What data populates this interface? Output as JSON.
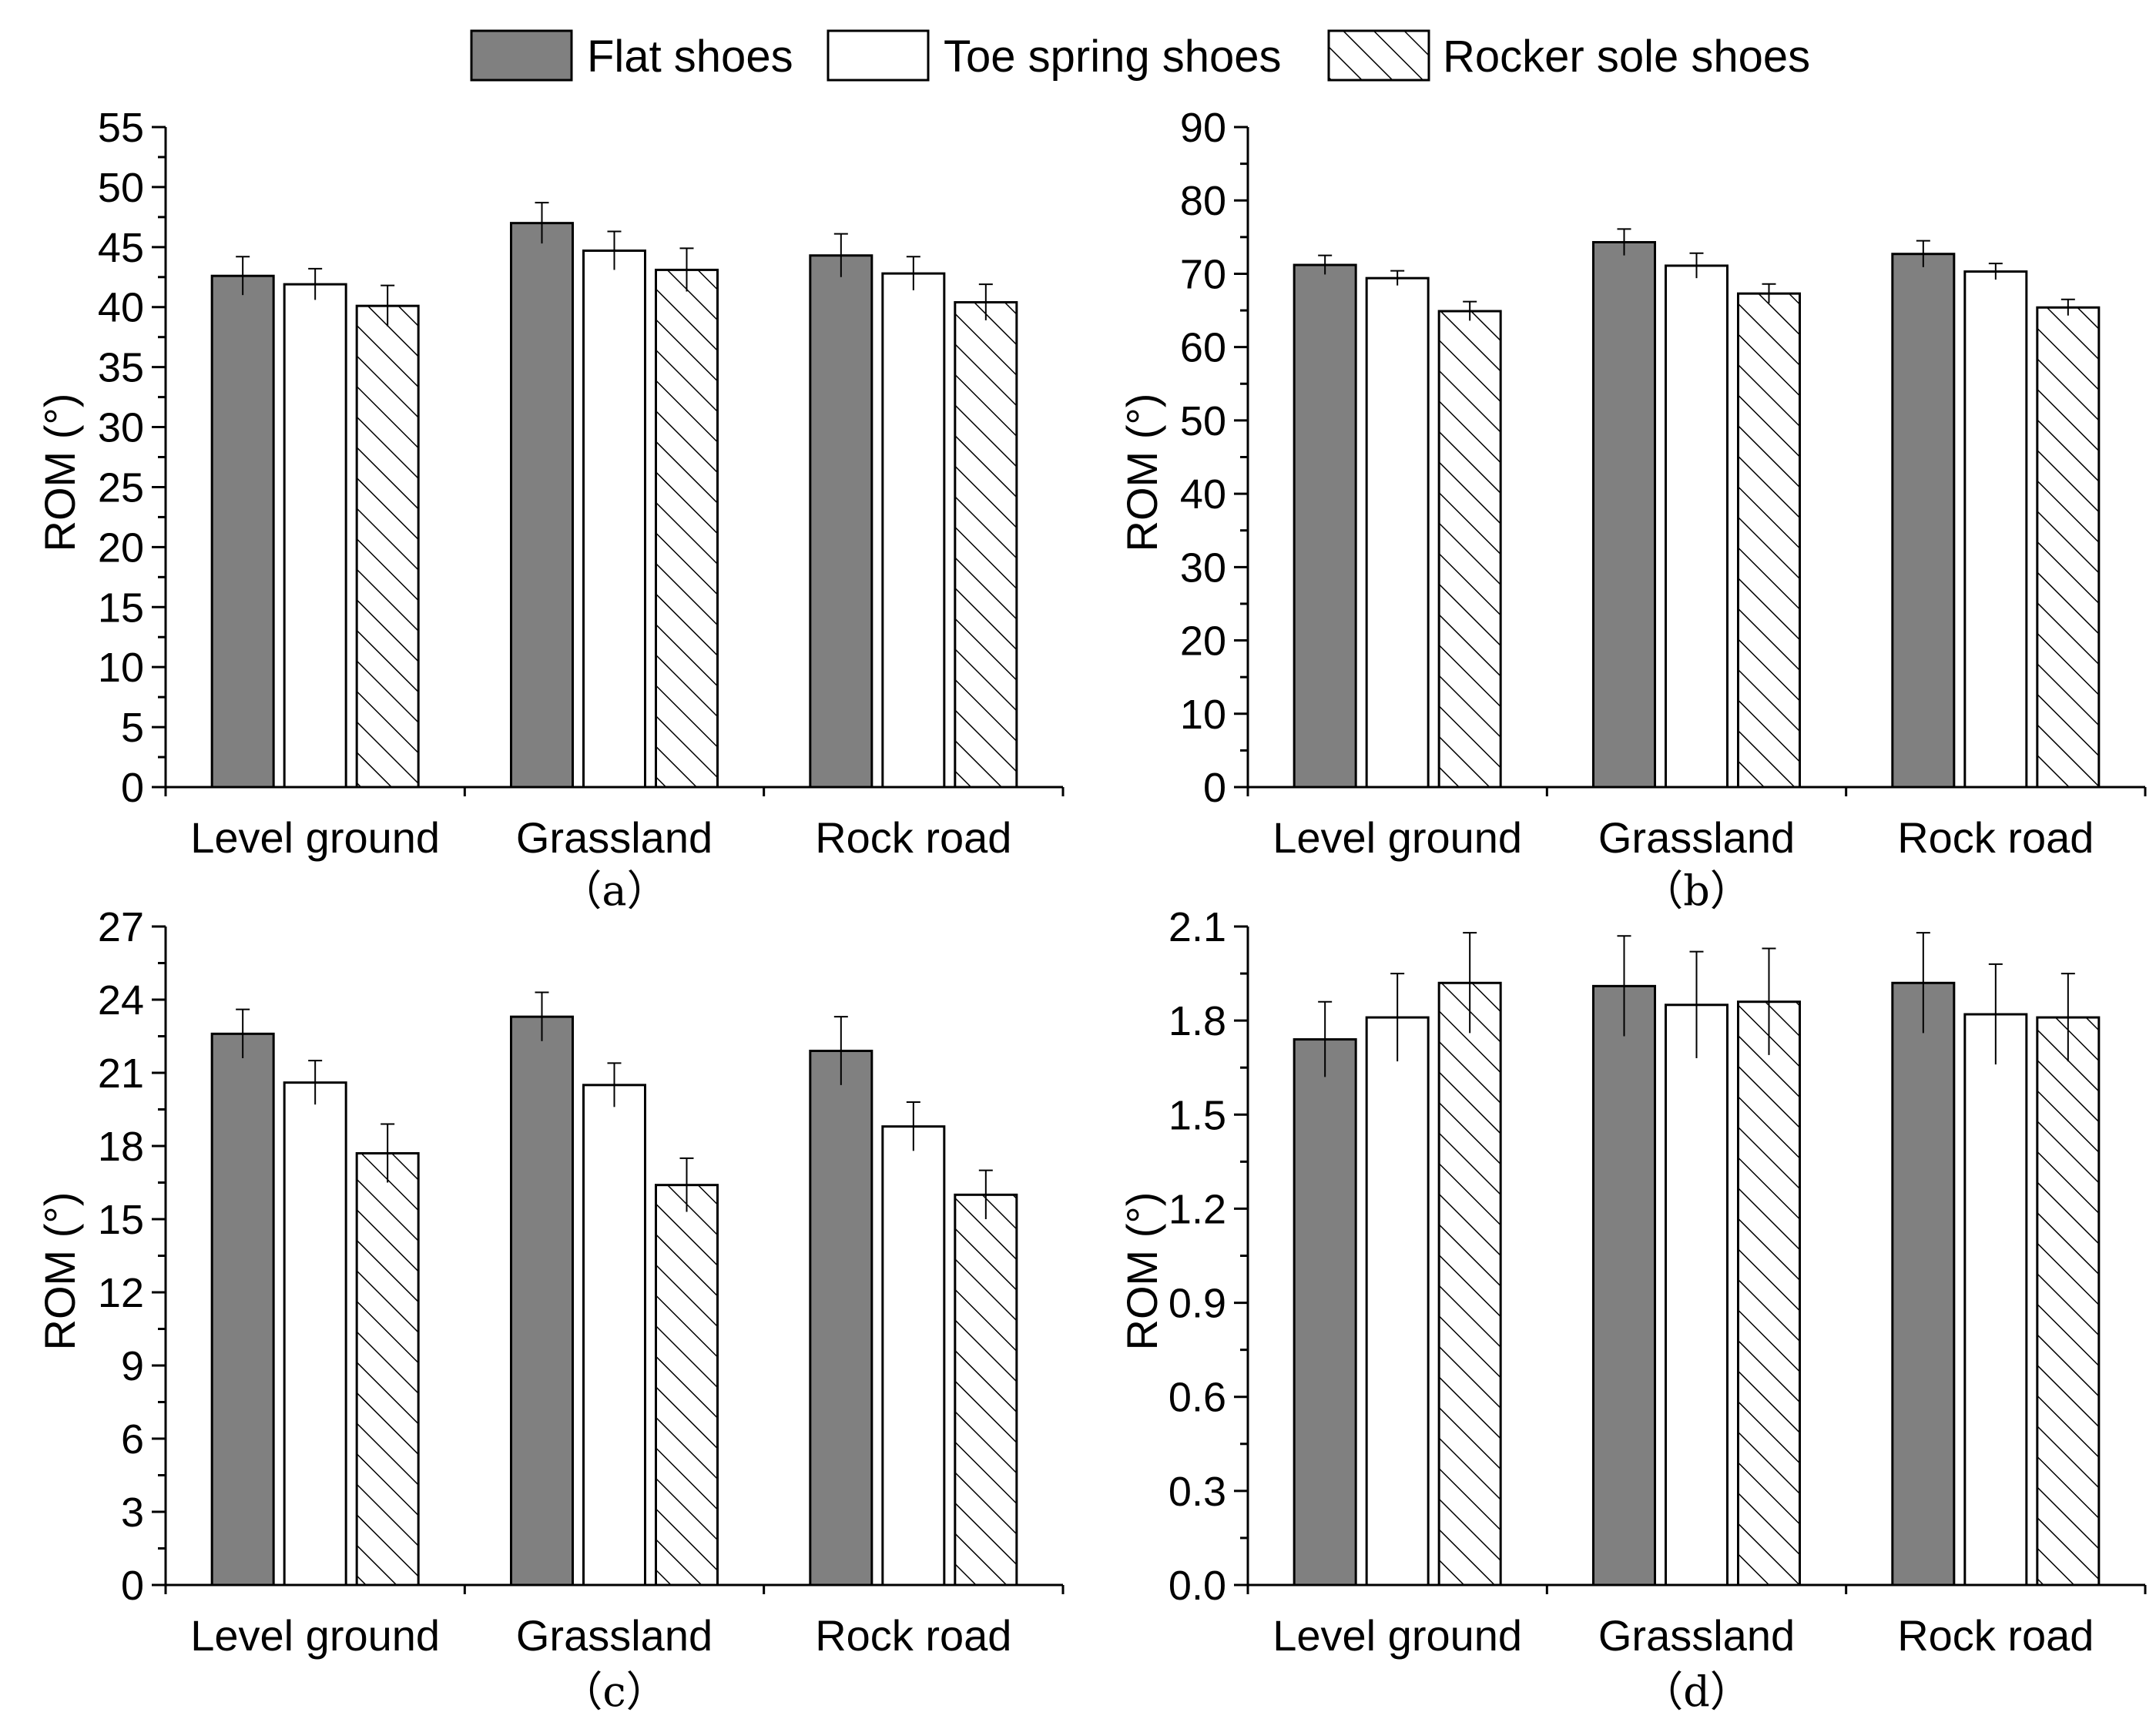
{
  "legend": {
    "items": [
      {
        "label": "Flat shoes",
        "style": "solid",
        "color": "#808080"
      },
      {
        "label": "Toe spring shoes",
        "style": "white",
        "color": "#ffffff"
      },
      {
        "label": "Rocker sole shoes",
        "style": "hatched",
        "color": "#ffffff"
      }
    ]
  },
  "chart_data": [
    {
      "type": "bar",
      "caption": "（a）",
      "title": "",
      "xlabel": "",
      "ylabel": "ROM (°)",
      "categories": [
        "Level ground",
        "Grassland",
        "Rock road"
      ],
      "ylim": [
        0,
        55
      ],
      "yticks": [
        0,
        5,
        10,
        15,
        20,
        25,
        30,
        35,
        40,
        45,
        50,
        55
      ],
      "series": [
        {
          "name": "Flat shoes",
          "values": [
            42.6,
            47.0,
            44.3
          ],
          "errors": [
            1.6,
            1.7,
            1.8
          ]
        },
        {
          "name": "Toe spring shoes",
          "values": [
            41.9,
            44.7,
            42.8
          ],
          "errors": [
            1.3,
            1.6,
            1.4
          ]
        },
        {
          "name": "Rocker sole shoes",
          "values": [
            40.1,
            43.1,
            40.4
          ],
          "errors": [
            1.7,
            1.8,
            1.5
          ]
        }
      ]
    },
    {
      "type": "bar",
      "caption": "（b）",
      "title": "",
      "xlabel": "",
      "ylabel": "ROM (°)",
      "categories": [
        "Level ground",
        "Grassland",
        "Rock road"
      ],
      "ylim": [
        0,
        90
      ],
      "yticks": [
        0,
        10,
        20,
        30,
        40,
        50,
        60,
        70,
        80,
        90
      ],
      "series": [
        {
          "name": "Flat shoes",
          "values": [
            71.2,
            74.3,
            72.7
          ],
          "errors": [
            1.3,
            1.8,
            1.8
          ]
        },
        {
          "name": "Toe spring shoes",
          "values": [
            69.4,
            71.1,
            70.3
          ],
          "errors": [
            1.0,
            1.7,
            1.1
          ]
        },
        {
          "name": "Rocker sole shoes",
          "values": [
            64.9,
            67.3,
            65.4
          ],
          "errors": [
            1.3,
            1.3,
            1.1
          ]
        }
      ]
    },
    {
      "type": "bar",
      "caption": "（c）",
      "title": "",
      "xlabel": "",
      "ylabel": "ROM (°)",
      "categories": [
        "Level ground",
        "Grassland",
        "Rock road"
      ],
      "ylim": [
        0,
        27
      ],
      "yticks": [
        0,
        3,
        6,
        9,
        12,
        15,
        18,
        21,
        24,
        27
      ],
      "series": [
        {
          "name": "Flat shoes",
          "values": [
            22.6,
            23.3,
            21.9
          ],
          "errors": [
            1.0,
            1.0,
            1.4
          ]
        },
        {
          "name": "Toe spring shoes",
          "values": [
            20.6,
            20.5,
            18.8
          ],
          "errors": [
            0.9,
            0.9,
            1.0
          ]
        },
        {
          "name": "Rocker sole shoes",
          "values": [
            17.7,
            16.4,
            16.0
          ],
          "errors": [
            1.2,
            1.1,
            1.0
          ]
        }
      ]
    },
    {
      "type": "bar",
      "caption": "（d）",
      "title": "",
      "xlabel": "",
      "ylabel": "ROM (°)",
      "categories": [
        "Level ground",
        "Grassland",
        "Rock road"
      ],
      "ylim": [
        0.0,
        2.1
      ],
      "yticks": [
        "0.0",
        "0.3",
        "0.6",
        "0.9",
        "1.2",
        "1.5",
        "1.8",
        "2.1"
      ],
      "series": [
        {
          "name": "Flat shoes",
          "values": [
            1.74,
            1.91,
            1.92
          ],
          "errors": [
            0.12,
            0.16,
            0.16
          ]
        },
        {
          "name": "Toe spring shoes",
          "values": [
            1.81,
            1.85,
            1.82
          ],
          "errors": [
            0.14,
            0.17,
            0.16
          ]
        },
        {
          "name": "Rocker sole shoes",
          "values": [
            1.92,
            1.86,
            1.81
          ],
          "errors": [
            0.16,
            0.17,
            0.14
          ]
        }
      ]
    }
  ]
}
